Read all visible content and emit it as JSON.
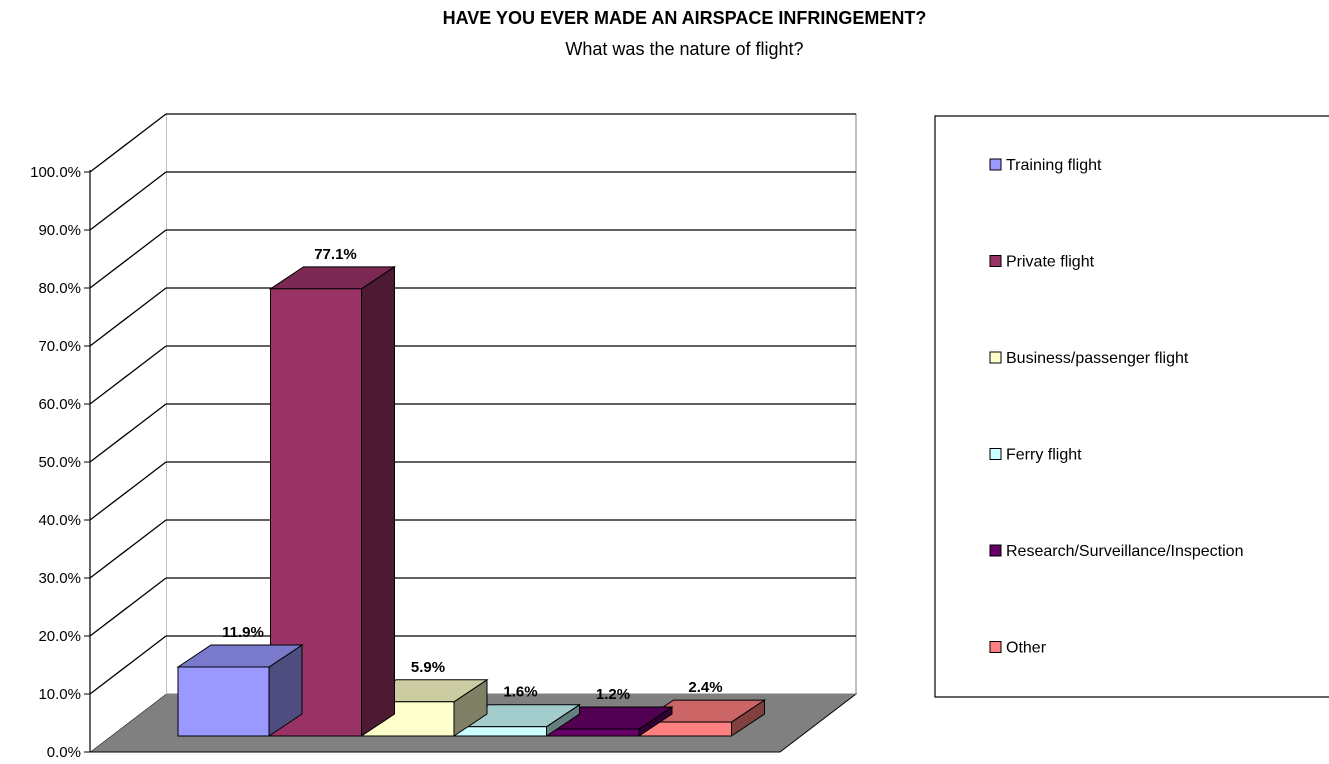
{
  "chart_data": {
    "type": "bar",
    "title": "HAVE YOU EVER MADE AN AIRSPACE INFRINGEMENT?",
    "subtitle": "What was the nature of flight?",
    "xlabel": "",
    "ylabel": "",
    "ylim": [
      0,
      100
    ],
    "yticks": [
      "0.0%",
      "10.0%",
      "20.0%",
      "30.0%",
      "40.0%",
      "50.0%",
      "60.0%",
      "70.0%",
      "80.0%",
      "90.0%",
      "100.0%"
    ],
    "grid": true,
    "legend_position": "right",
    "three_d": true,
    "categories": [
      "Training flight",
      "Private flight",
      "Business/passenger flight",
      "Ferry flight",
      "Research/Surveillance/Inspection",
      "Other"
    ],
    "values": [
      11.9,
      77.1,
      5.9,
      1.6,
      1.2,
      2.4
    ],
    "data_labels": [
      "11.9%",
      "77.1%",
      "5.9%",
      "1.6%",
      "1.2%",
      "2.4%"
    ],
    "colors": [
      "#9999FF",
      "#993366",
      "#FFFFCC",
      "#CCFFFF",
      "#660066",
      "#FF8080"
    ]
  }
}
